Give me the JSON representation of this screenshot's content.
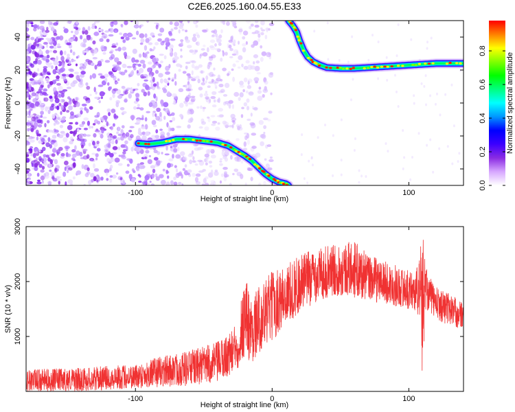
{
  "chart_data": [
    {
      "type": "heatmap",
      "title": "C2E6.2025.160.04.55.E33",
      "xlabel": "Height of straight line (km)",
      "ylabel": "Frequency (Hz)",
      "xlim": [
        -180,
        140
      ],
      "ylim": [
        -50,
        50
      ],
      "x_ticks": [
        -100,
        0,
        100
      ],
      "y_ticks": [
        -40,
        -20,
        0,
        20,
        40
      ],
      "colorbar": {
        "label": "Normalized spectral amplitude",
        "range": [
          0,
          0.98
        ],
        "ticks": [
          "0.0",
          "0.2",
          "0.4",
          "0.6",
          "0.8"
        ],
        "colors": [
          "#ffffff",
          "#d7a7ff",
          "#8a2be2",
          "#3c00ff",
          "#0000ff",
          "#0096ff",
          "#00ffff",
          "#00ff80",
          "#00ff00",
          "#80ff00",
          "#ffff00",
          "#ff8000",
          "#ff0000"
        ]
      },
      "trace_lower": {
        "x": [
          -98,
          -90,
          -80,
          -70,
          -60,
          -50,
          -40,
          -32,
          -26,
          -20,
          -15,
          -10,
          -5,
          0,
          5,
          10,
          12
        ],
        "y": [
          -24.5,
          -25,
          -24,
          -22,
          -22,
          -23,
          -24,
          -26,
          -29,
          -32,
          -35,
          -39,
          -43,
          -46,
          -48,
          -49,
          -50
        ]
      },
      "trace_upper": {
        "x": [
          12,
          15,
          18,
          20,
          23,
          26,
          30,
          35,
          40,
          50,
          60,
          70,
          80,
          90,
          100,
          110,
          120,
          130,
          140
        ],
        "y": [
          50,
          47,
          43,
          38,
          32,
          28,
          25,
          23,
          21.5,
          21,
          21,
          21.5,
          22,
          22.5,
          23,
          23.5,
          24,
          24,
          24
        ]
      }
    },
    {
      "type": "line",
      "xlabel": "Height of straight line (km)",
      "ylabel": "SNR (10 * v/v)",
      "xlim": [
        -180,
        140
      ],
      "ylim": [
        0,
        3000
      ],
      "x_ticks": [
        -100,
        0,
        100
      ],
      "y_ticks": [
        1000,
        2000,
        3000
      ],
      "color": "#f03232",
      "envelope": {
        "x": [
          -180,
          -140,
          -100,
          -80,
          -60,
          -40,
          -30,
          -25,
          -20,
          -15,
          -10,
          0,
          10,
          20,
          30,
          40,
          50,
          60,
          70,
          80,
          90,
          100,
          105,
          108,
          110,
          112,
          115,
          120,
          130,
          140
        ],
        "low": [
          0,
          0,
          50,
          80,
          100,
          150,
          300,
          400,
          600,
          500,
          700,
          900,
          1200,
          1400,
          1600,
          1700,
          1750,
          1700,
          1650,
          1600,
          1550,
          1500,
          1450,
          1300,
          100,
          1500,
          1450,
          1300,
          1200,
          1100
        ],
        "high": [
          400,
          430,
          500,
          650,
          750,
          900,
          1100,
          1300,
          2200,
          1700,
          1900,
          2200,
          2300,
          2500,
          2600,
          2650,
          2700,
          2750,
          2500,
          2400,
          2300,
          2200,
          2200,
          2500,
          3000,
          2400,
          2100,
          1900,
          1800,
          1600
        ]
      }
    }
  ]
}
